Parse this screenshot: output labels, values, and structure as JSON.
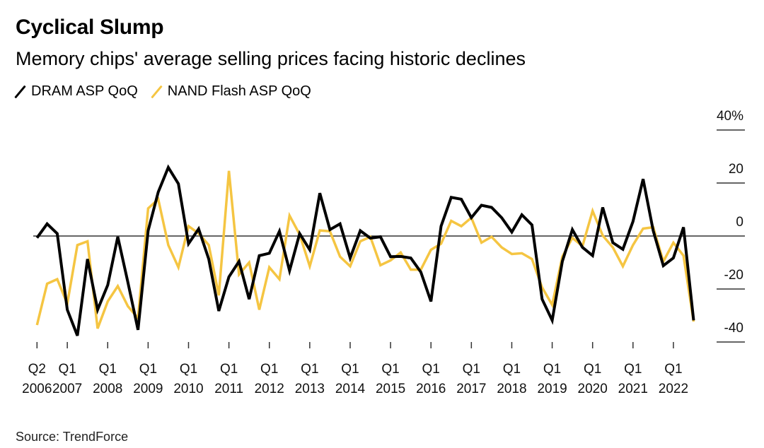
{
  "title": "Cyclical Slump",
  "subtitle": "Memory chips' average selling prices facing historic declines",
  "source": "Source: TrendForce",
  "chart_data": {
    "type": "line",
    "title": "Cyclical Slump",
    "subtitle": "Memory chips' average selling prices facing historic declines",
    "xlabel": "",
    "ylabel": "",
    "ylim": [
      -40,
      40
    ],
    "y_ticks": [
      {
        "value": 40,
        "label": "40%"
      },
      {
        "value": 20,
        "label": "20"
      },
      {
        "value": 0,
        "label": "0"
      },
      {
        "value": -20,
        "label": "-20"
      },
      {
        "value": -40,
        "label": "-40"
      }
    ],
    "x_start": "Q2 2006",
    "x_end": "Q3 2022",
    "x_ticks": [
      {
        "quarter": "Q2",
        "year": "2006"
      },
      {
        "quarter": "Q1",
        "year": "2007"
      },
      {
        "quarter": "Q1",
        "year": "2008"
      },
      {
        "quarter": "Q1",
        "year": "2009"
      },
      {
        "quarter": "Q1",
        "year": "2010"
      },
      {
        "quarter": "Q1",
        "year": "2011"
      },
      {
        "quarter": "Q1",
        "year": "2012"
      },
      {
        "quarter": "Q1",
        "year": "2013"
      },
      {
        "quarter": "Q1",
        "year": "2014"
      },
      {
        "quarter": "Q1",
        "year": "2015"
      },
      {
        "quarter": "Q1",
        "year": "2016"
      },
      {
        "quarter": "Q1",
        "year": "2017"
      },
      {
        "quarter": "Q1",
        "year": "2018"
      },
      {
        "quarter": "Q1",
        "year": "2019"
      },
      {
        "quarter": "Q1",
        "year": "2020"
      },
      {
        "quarter": "Q1",
        "year": "2021"
      },
      {
        "quarter": "Q1",
        "year": "2022"
      }
    ],
    "grid": "horizontal ticks at right; zero line",
    "legend": "top-left",
    "series": [
      {
        "name": "DRAM ASP QoQ",
        "color": "#000000",
        "values": [
          -0.7,
          4.6,
          0.9,
          -27.8,
          -37.6,
          -8.7,
          -27.8,
          -18.5,
          -0.3,
          -17.5,
          -35.4,
          2.0,
          16.6,
          25.9,
          19.7,
          -2.9,
          2.7,
          -8.7,
          -28.3,
          -15.4,
          -9.6,
          -23.8,
          -7.4,
          -6.5,
          1.8,
          -13.1,
          0.9,
          -5.2,
          16.2,
          2.4,
          4.6,
          -8.3,
          2.0,
          -0.8,
          -0.3,
          -7.8,
          -7.7,
          -8.3,
          -13.6,
          -24.7,
          3.7,
          14.6,
          13.9,
          6.9,
          11.6,
          10.8,
          6.9,
          1.5,
          8.0,
          4.2,
          -23.8,
          -31.8,
          -9.6,
          2.4,
          -4.3,
          -7.4,
          10.8,
          -2.5,
          -5.0,
          5.5,
          21.5,
          2.0,
          -11.2,
          -8.3,
          3.3,
          -31.8
        ]
      },
      {
        "name": "NAND Flash ASP QoQ",
        "color": "#f5c542",
        "values": [
          -33.6,
          -18.0,
          -16.3,
          -25.6,
          -3.4,
          -2.0,
          -34.9,
          -24.7,
          -18.9,
          -26.5,
          -31.0,
          10.4,
          13.9,
          -3.4,
          -11.8,
          3.7,
          1.0,
          -3.4,
          -22.4,
          24.6,
          -14.5,
          -10.0,
          -27.8,
          -11.8,
          -16.3,
          7.7,
          0.6,
          -11.4,
          2.1,
          1.8,
          -7.8,
          -11.4,
          -2.0,
          -0.3,
          -11.0,
          -9.2,
          -6.2,
          -12.7,
          -12.7,
          -5.2,
          -2.9,
          5.7,
          3.7,
          6.9,
          -2.5,
          -0.3,
          -4.3,
          -6.8,
          -6.5,
          -8.7,
          -19.4,
          -26.0,
          -7.8,
          -0.7,
          -3.8,
          9.5,
          0.2,
          -4.3,
          -11.4,
          -3.4,
          2.8,
          3.3,
          -9.6,
          -2.5,
          -7.4,
          -32.3
        ]
      }
    ]
  }
}
